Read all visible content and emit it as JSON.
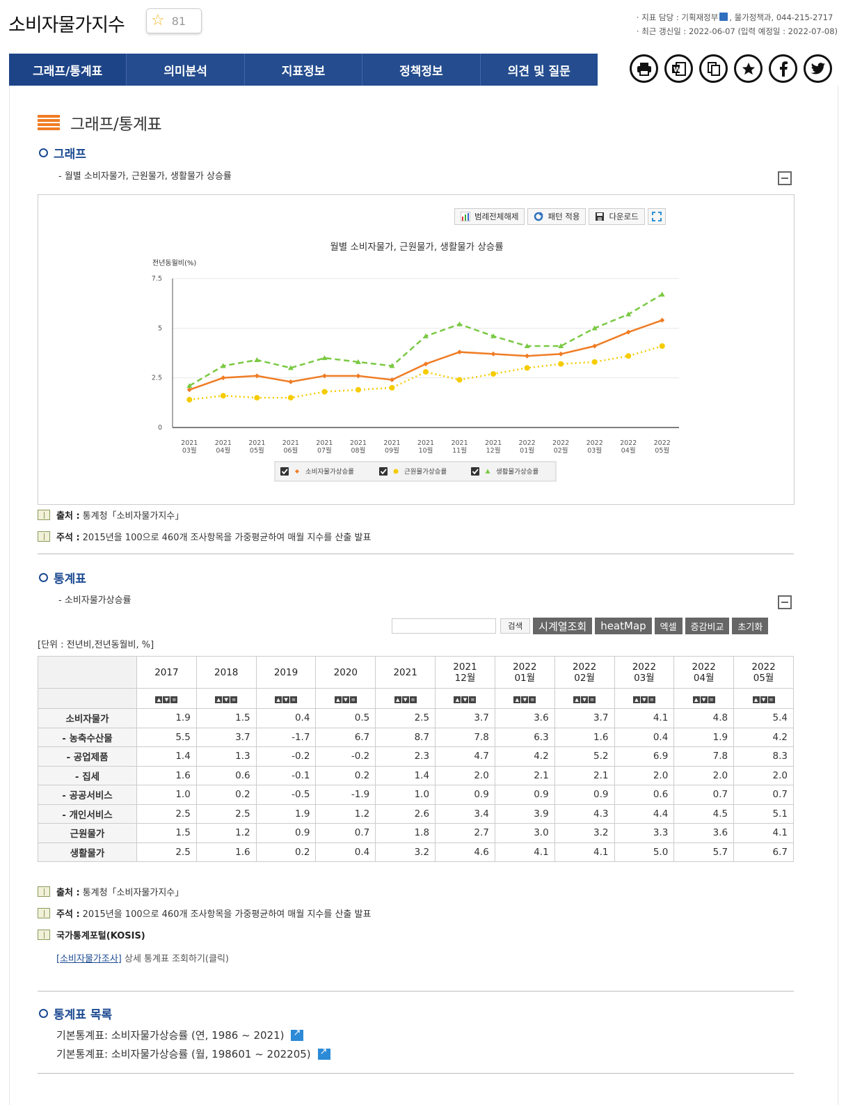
{
  "header": {
    "title": "소비자물가지수",
    "favorite_count": "81",
    "meta_line1_prefix": "· 지표 담당 : ",
    "meta_ministry": "기획재정부",
    "meta_line1_suffix": ", 물가정책과, 044-215-2717",
    "meta_line2": "· 최근 갱신일 : 2022-06-07 (입력 예정일 : 2022-07-08)"
  },
  "nav": {
    "tabs": [
      "그래프/통계표",
      "의미분석",
      "지표정보",
      "정책정보",
      "의견 및 질문"
    ]
  },
  "share_icons": [
    "print-icon",
    "word-icon",
    "copy-icon",
    "favorite-icon",
    "facebook-icon",
    "twitter-icon"
  ],
  "section": {
    "title": "그래프/통계표",
    "graph_heading": "그래프",
    "graph_desc": "- 월별 소비자물가, 근원물가, 생활물가 상승률",
    "chart_buttons": {
      "legend_off": "범례전체해제",
      "pattern": "패턴 적용",
      "download": "다운로드"
    },
    "table_heading": "통계표",
    "table_desc": "- 소비자물가상승률",
    "list_heading": "통계표 목록"
  },
  "chart_data": {
    "type": "line",
    "title": "월별 소비자물가, 근원물가, 생활물가 상승률",
    "ylabel": "전년동월비(%)",
    "ylim": [
      0,
      7.5
    ],
    "yticks": [
      "0",
      "2.5",
      "5",
      "7.5"
    ],
    "categories": [
      "2021|03월",
      "2021|04월",
      "2021|05월",
      "2021|06월",
      "2021|07월",
      "2021|08월",
      "2021|09월",
      "2021|10월",
      "2021|11월",
      "2021|12월",
      "2022|01월",
      "2022|02월",
      "2022|03월",
      "2022|04월",
      "2022|05월"
    ],
    "series": [
      {
        "name": "소비자물가상승률",
        "color": "#f07c24",
        "values": [
          1.9,
          2.5,
          2.6,
          2.3,
          2.6,
          2.6,
          2.4,
          3.2,
          3.8,
          3.7,
          3.6,
          3.7,
          4.1,
          4.8,
          5.4
        ]
      },
      {
        "name": "근원물가상승률",
        "color": "#f5cc00",
        "values": [
          1.4,
          1.6,
          1.5,
          1.5,
          1.8,
          1.9,
          2.0,
          2.8,
          2.4,
          2.7,
          3.0,
          3.2,
          3.3,
          3.6,
          4.1
        ]
      },
      {
        "name": "생활물가상승률",
        "color": "#7ac943",
        "values": [
          2.1,
          3.1,
          3.4,
          3.0,
          3.5,
          3.3,
          3.1,
          4.6,
          5.2,
          4.6,
          4.1,
          4.1,
          5.0,
          5.7,
          6.7
        ]
      }
    ],
    "legend_placement": "bottom-center",
    "grid": true
  },
  "notes": {
    "source_label": "출처 :",
    "source_text": "통계청「소비자물가지수」",
    "remark_label": "주석 :",
    "remark_text": "2015년을 100으로 460개 조사항목을 가중평균하여 매월 지수를 산출 발표",
    "kosis_label": "국가통계포털(KOSIS)",
    "kosis_link": "[소비자물가조사]",
    "kosis_text": " 상세 통계표 조회하기(클릭)"
  },
  "table_tools": {
    "search_btn": "검색",
    "timeseries": "시계열조회",
    "heatmap": "heatMap",
    "excel": "엑셀",
    "compare": "증감비교",
    "reset": "초기화"
  },
  "unit": "[단위 : 전년비,전년동월비, %]",
  "table": {
    "columns": [
      {
        "l1": "2017",
        "l2": ""
      },
      {
        "l1": "2018",
        "l2": ""
      },
      {
        "l1": "2019",
        "l2": ""
      },
      {
        "l1": "2020",
        "l2": ""
      },
      {
        "l1": "2021",
        "l2": ""
      },
      {
        "l1": "2021",
        "l2": "12월"
      },
      {
        "l1": "2022",
        "l2": "01월"
      },
      {
        "l1": "2022",
        "l2": "02월"
      },
      {
        "l1": "2022",
        "l2": "03월"
      },
      {
        "l1": "2022",
        "l2": "04월"
      },
      {
        "l1": "2022",
        "l2": "05월"
      }
    ],
    "rows": [
      {
        "label": "소비자물가",
        "values": [
          "1.9",
          "1.5",
          "0.4",
          "0.5",
          "2.5",
          "3.7",
          "3.6",
          "3.7",
          "4.1",
          "4.8",
          "5.4"
        ]
      },
      {
        "label": "- 농축수산물",
        "values": [
          "5.5",
          "3.7",
          "-1.7",
          "6.7",
          "8.7",
          "7.8",
          "6.3",
          "1.6",
          "0.4",
          "1.9",
          "4.2"
        ]
      },
      {
        "label": "- 공업제품",
        "values": [
          "1.4",
          "1.3",
          "-0.2",
          "-0.2",
          "2.3",
          "4.7",
          "4.2",
          "5.2",
          "6.9",
          "7.8",
          "8.3"
        ]
      },
      {
        "label": "- 집세",
        "values": [
          "1.6",
          "0.6",
          "-0.1",
          "0.2",
          "1.4",
          "2.0",
          "2.1",
          "2.1",
          "2.0",
          "2.0",
          "2.0"
        ]
      },
      {
        "label": "- 공공서비스",
        "values": [
          "1.0",
          "0.2",
          "-0.5",
          "-1.9",
          "1.0",
          "0.9",
          "0.9",
          "0.9",
          "0.6",
          "0.7",
          "0.7"
        ]
      },
      {
        "label": "- 개인서비스",
        "values": [
          "2.5",
          "2.5",
          "1.9",
          "1.2",
          "2.6",
          "3.4",
          "3.9",
          "4.3",
          "4.4",
          "4.5",
          "5.1"
        ]
      },
      {
        "label": "근원물가",
        "values": [
          "1.5",
          "1.2",
          "0.9",
          "0.7",
          "1.8",
          "2.7",
          "3.0",
          "3.2",
          "3.3",
          "3.6",
          "4.1"
        ]
      },
      {
        "label": "생활물가",
        "values": [
          "2.5",
          "1.6",
          "0.2",
          "0.4",
          "3.2",
          "4.6",
          "4.1",
          "4.1",
          "5.0",
          "5.7",
          "6.7"
        ]
      }
    ]
  },
  "stat_list": [
    "기본통계표: 소비자물가상승률 (연, 1986 ~ 2021)",
    "기본통계표: 소비자물가상승률 (월, 198601 ~ 202205)"
  ]
}
